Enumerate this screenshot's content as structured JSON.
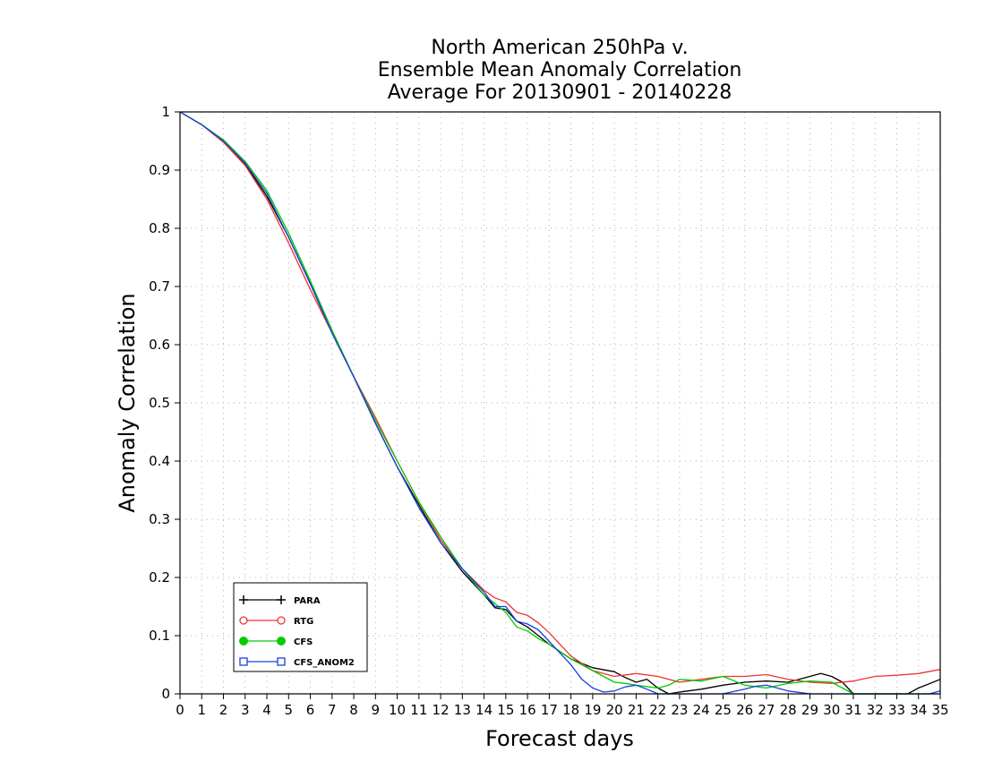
{
  "chart_data": {
    "type": "line",
    "title": [
      "North American 250hPa v.",
      "Ensemble Mean Anomaly Correlation",
      "Average For 20130901 - 20140228"
    ],
    "xlabel": "Forecast days",
    "ylabel": "Anomaly Correlation",
    "xlim": [
      0,
      35
    ],
    "ylim": [
      0,
      1
    ],
    "xticks": [
      0,
      1,
      2,
      3,
      4,
      5,
      6,
      7,
      8,
      9,
      10,
      11,
      12,
      13,
      14,
      15,
      16,
      17,
      18,
      19,
      20,
      21,
      22,
      23,
      24,
      25,
      26,
      27,
      28,
      29,
      30,
      31,
      32,
      33,
      34,
      35
    ],
    "yticks": [
      0,
      0.1,
      0.2,
      0.3,
      0.4,
      0.5,
      0.6,
      0.7,
      0.8,
      0.9,
      1
    ],
    "grid": true,
    "legend_position": "lower-left",
    "series": [
      {
        "name": "PARA",
        "color": "#000000",
        "marker": "plus",
        "x": [
          0,
          1,
          2,
          3,
          4,
          5,
          6,
          7,
          8,
          9,
          10,
          11,
          12,
          13,
          14,
          14.5,
          15,
          15.5,
          16,
          16.5,
          17,
          18,
          19,
          20,
          20.5,
          21,
          21.5,
          22,
          22.5,
          23,
          24,
          25,
          26,
          27,
          28,
          29,
          29.5,
          30,
          30.5,
          31,
          31.5,
          32,
          32.5,
          33,
          33.5,
          34,
          35
        ],
        "y": [
          1,
          0.978,
          0.948,
          0.91,
          0.855,
          0.785,
          0.705,
          0.62,
          0.545,
          0.465,
          0.39,
          0.325,
          0.26,
          0.21,
          0.17,
          0.148,
          0.145,
          0.125,
          0.115,
          0.1,
          0.085,
          0.06,
          0.045,
          0.038,
          0.028,
          0.02,
          0.025,
          0.01,
          0,
          0.003,
          0.008,
          0.015,
          0.02,
          0.022,
          0.02,
          0.03,
          0.035,
          0.03,
          0.02,
          0,
          0,
          0,
          0,
          0,
          0,
          0.01,
          0.025
        ]
      },
      {
        "name": "RTG",
        "color": "#ee3333",
        "marker": "open-circle",
        "x": [
          0,
          1,
          2,
          3,
          4,
          5,
          6,
          7,
          8,
          9,
          10,
          11,
          12,
          13,
          14,
          14.5,
          15,
          15.5,
          16,
          16.5,
          17,
          17.5,
          18,
          19,
          20,
          21,
          22,
          23,
          24,
          25,
          26,
          27,
          28,
          29,
          30,
          31,
          32,
          33,
          34,
          35
        ],
        "y": [
          1,
          0.978,
          0.948,
          0.908,
          0.85,
          0.775,
          0.695,
          0.62,
          0.545,
          0.475,
          0.4,
          0.33,
          0.265,
          0.215,
          0.178,
          0.165,
          0.158,
          0.14,
          0.135,
          0.122,
          0.105,
          0.085,
          0.065,
          0.04,
          0.03,
          0.035,
          0.03,
          0.02,
          0.025,
          0.03,
          0.03,
          0.033,
          0.025,
          0.02,
          0.018,
          0.022,
          0.03,
          0.032,
          0.035,
          0.042
        ]
      },
      {
        "name": "CFS",
        "color": "#00cc00",
        "marker": "filled-circle",
        "x": [
          0,
          1,
          2,
          3,
          4,
          5,
          6,
          7,
          8,
          9,
          10,
          11,
          12,
          13,
          14,
          15,
          15.5,
          16,
          16.5,
          17,
          18,
          19,
          20,
          20.5,
          21,
          22,
          22.5,
          23,
          24,
          25,
          26,
          27,
          28,
          29,
          30,
          31,
          32,
          33,
          34,
          35
        ],
        "y": [
          1,
          0.978,
          0.952,
          0.915,
          0.865,
          0.792,
          0.71,
          0.625,
          0.545,
          0.47,
          0.4,
          0.33,
          0.27,
          0.215,
          0.17,
          0.14,
          0.115,
          0.108,
          0.095,
          0.085,
          0.06,
          0.04,
          0.02,
          0.018,
          0.015,
          0.01,
          0.015,
          0.025,
          0.022,
          0.03,
          0.015,
          0.01,
          0.018,
          0.022,
          0.02,
          0,
          0,
          0,
          0,
          0
        ]
      },
      {
        "name": "CFS_ANOM2",
        "color": "#1a3fe0",
        "marker": "open-square",
        "x": [
          0,
          1,
          2,
          3,
          4,
          5,
          6,
          7,
          8,
          9,
          10,
          11,
          12,
          13,
          14,
          14.5,
          15,
          15.5,
          16,
          16.5,
          17,
          18,
          18.5,
          19,
          19.5,
          20,
          20.5,
          21,
          21.5,
          22,
          23,
          24,
          25,
          26,
          26.5,
          27,
          27.5,
          28,
          29,
          30,
          31,
          32,
          33,
          34,
          34.5,
          35
        ],
        "y": [
          1,
          0.978,
          0.95,
          0.912,
          0.86,
          0.785,
          0.705,
          0.62,
          0.545,
          0.465,
          0.39,
          0.32,
          0.26,
          0.215,
          0.175,
          0.15,
          0.15,
          0.125,
          0.12,
          0.11,
          0.09,
          0.05,
          0.025,
          0.01,
          0.003,
          0.005,
          0.012,
          0.015,
          0.008,
          0,
          0,
          0,
          0,
          0.008,
          0.013,
          0.015,
          0.01,
          0.005,
          0,
          0,
          0,
          0,
          0,
          0,
          0,
          0.005
        ]
      }
    ]
  }
}
